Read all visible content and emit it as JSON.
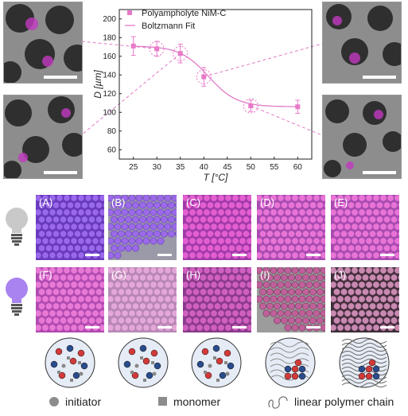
{
  "chart_data": {
    "type": "scatter",
    "title": "",
    "xlabel": "T [°C]",
    "ylabel": "D [µm]",
    "xlim": [
      22,
      63
    ],
    "ylim": [
      50,
      210
    ],
    "xticks": [
      25,
      30,
      35,
      40,
      45,
      50,
      55,
      60
    ],
    "yticks": [
      60,
      80,
      100,
      120,
      140,
      160,
      180,
      200
    ],
    "series": [
      {
        "name": "Polyampholyte NiM-C",
        "marker": "square",
        "color": "#e879c8",
        "x": [
          25,
          30,
          35,
          40,
          50,
          60
        ],
        "y": [
          171,
          168,
          163,
          138,
          107,
          106
        ],
        "yerr": [
          10,
          8,
          10,
          10,
          6,
          7
        ]
      },
      {
        "name": "Boltzmann Fit",
        "type": "line",
        "color": "#e07ac8",
        "A1": 171,
        "A2": 106,
        "x0": 41,
        "dx": 3
      }
    ],
    "highlighted_points": [
      30,
      35,
      40,
      50
    ],
    "legend_position": "top-left"
  },
  "tiles_row1": [
    "(A)",
    "(B)",
    "(C)",
    "(D)",
    "(E)"
  ],
  "tiles_row2": [
    "(F)",
    "(G)",
    "(H)",
    "(I)",
    "(J)"
  ],
  "bottom_legend": {
    "initiator": "initiator",
    "monomer": "monomer",
    "polymer": "linear polymer chain"
  },
  "colors": {
    "pink": "#e07ac8",
    "purple_tile": "#8a52d8",
    "magenta_tile": "#cf5ac0",
    "bulb_gray": "#c9c9c9",
    "bulb_purple": "#a983f0",
    "particle_red": "#d23a3a",
    "particle_blue": "#2a4c8c"
  }
}
